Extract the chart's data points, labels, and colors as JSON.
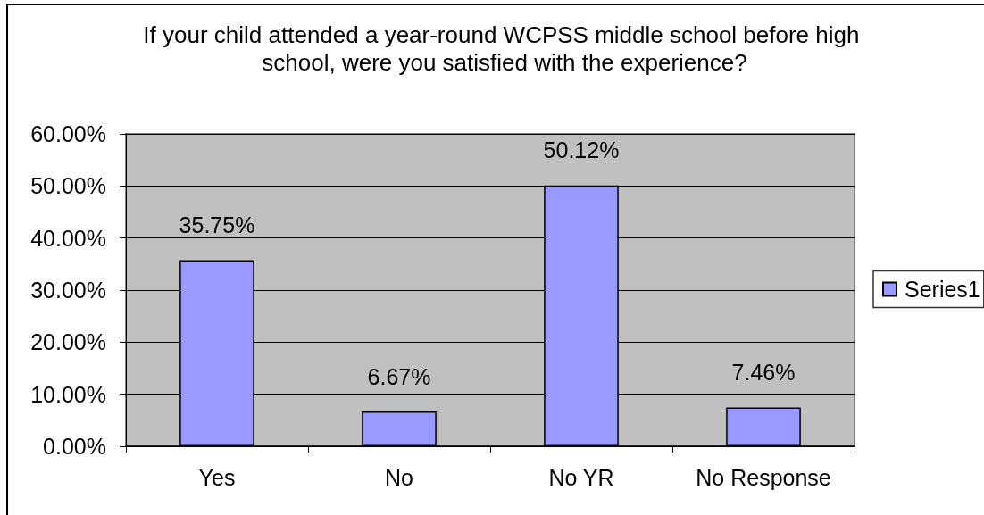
{
  "chart_data": {
    "type": "bar",
    "title": "If your child attended a year-round WCPSS middle school before high school, were you satisfied with the experience?",
    "categories": [
      "Yes",
      "No",
      "No YR",
      "No Response"
    ],
    "series": [
      {
        "name": "Series1",
        "color": "#9999ff",
        "values": [
          35.75,
          6.67,
          50.12,
          7.46
        ],
        "value_labels": [
          "35.75%",
          "6.67%",
          "50.12%",
          "7.46%"
        ]
      }
    ],
    "ylim": [
      0,
      60
    ],
    "yticks": [
      {
        "value": 0,
        "label": "0.00%"
      },
      {
        "value": 10,
        "label": "10.00%"
      },
      {
        "value": 20,
        "label": "20.00%"
      },
      {
        "value": 30,
        "label": "30.00%"
      },
      {
        "value": 40,
        "label": "40.00%"
      },
      {
        "value": 50,
        "label": "50.00%"
      },
      {
        "value": 60,
        "label": "60.00%"
      }
    ],
    "grid": "y",
    "legend": "right"
  }
}
